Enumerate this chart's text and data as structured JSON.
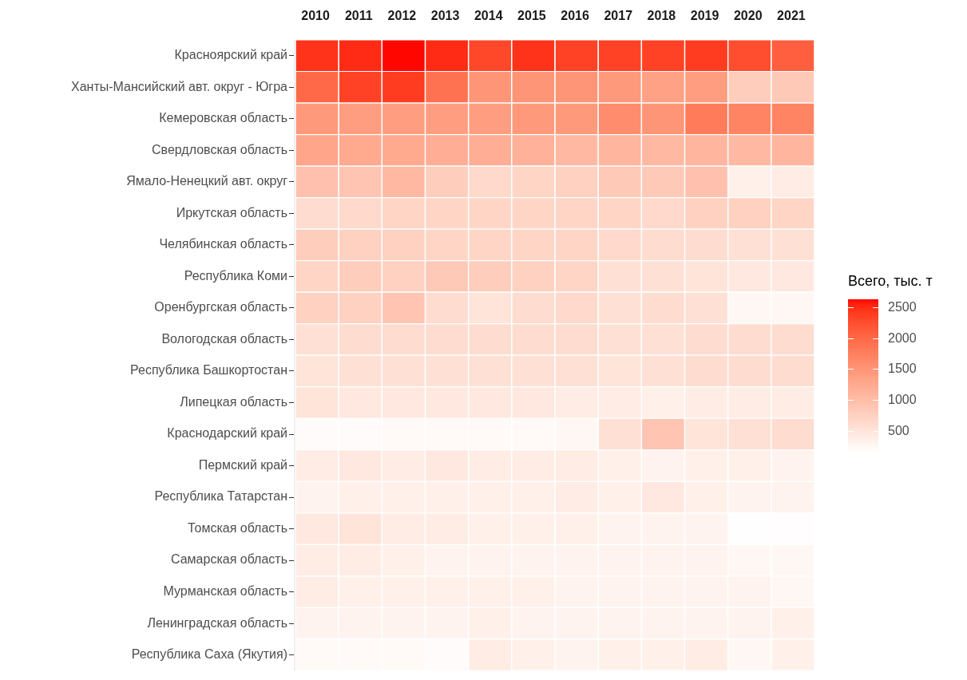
{
  "chart_data": {
    "type": "heatmap",
    "clabel": "Всего, тыс. т",
    "categories": [
      "2010",
      "2011",
      "2012",
      "2013",
      "2014",
      "2015",
      "2016",
      "2017",
      "2018",
      "2019",
      "2020",
      "2021"
    ],
    "y_categories": [
      "Красноярский край",
      "Ханты-Мансийский авт. округ - Югра",
      "Кемеровская область",
      "Свердловская область",
      "Ямало-Ненецкий авт. округ",
      "Иркутская область",
      "Челябинская область",
      "Республика Коми",
      "Оренбургская область",
      "Вологодская область",
      "Республика Башкортостан",
      "Липецкая область",
      "Краснодарский край",
      "Пермский край",
      "Республика Татарстан",
      "Томская область",
      "Самарская область",
      "Мурманская область",
      "Ленинградская область",
      "Республика Саха (Якутия)"
    ],
    "cells": [
      [
        2450,
        2500,
        2620,
        2500,
        2300,
        2450,
        2350,
        2350,
        2350,
        2400,
        2250,
        2100
      ],
      [
        2000,
        2350,
        2400,
        1900,
        1500,
        1500,
        1500,
        1450,
        1350,
        1400,
        800,
        850
      ],
      [
        1450,
        1400,
        1400,
        1400,
        1400,
        1450,
        1450,
        1600,
        1500,
        1800,
        1700,
        1700
      ],
      [
        1300,
        1250,
        1250,
        1200,
        1200,
        1150,
        1050,
        1100,
        1050,
        1100,
        1050,
        1100
      ],
      [
        950,
        900,
        1050,
        800,
        650,
        700,
        750,
        850,
        850,
        950,
        350,
        400
      ],
      [
        600,
        650,
        700,
        700,
        700,
        700,
        700,
        700,
        650,
        750,
        750,
        700
      ],
      [
        800,
        750,
        750,
        700,
        700,
        700,
        700,
        650,
        600,
        600,
        550,
        550
      ],
      [
        700,
        800,
        750,
        850,
        800,
        750,
        700,
        550,
        550,
        500,
        450,
        450
      ],
      [
        750,
        750,
        900,
        600,
        500,
        600,
        650,
        550,
        600,
        550,
        250,
        250
      ],
      [
        550,
        600,
        600,
        600,
        600,
        600,
        600,
        550,
        550,
        600,
        600,
        600
      ],
      [
        500,
        550,
        550,
        550,
        550,
        550,
        550,
        500,
        550,
        600,
        600,
        600
      ],
      [
        500,
        450,
        450,
        450,
        450,
        450,
        400,
        400,
        350,
        400,
        400,
        400
      ],
      [
        200,
        200,
        230,
        230,
        230,
        230,
        250,
        550,
        900,
        500,
        550,
        600
      ],
      [
        400,
        450,
        400,
        450,
        400,
        400,
        400,
        350,
        300,
        350,
        350,
        300
      ],
      [
        300,
        350,
        350,
        350,
        350,
        350,
        400,
        350,
        450,
        350,
        300,
        300
      ],
      [
        450,
        500,
        400,
        400,
        350,
        350,
        350,
        300,
        300,
        300,
        160,
        170
      ],
      [
        400,
        400,
        350,
        300,
        300,
        300,
        300,
        300,
        300,
        300,
        250,
        250
      ],
      [
        400,
        350,
        350,
        350,
        350,
        350,
        300,
        300,
        300,
        300,
        300,
        250
      ],
      [
        300,
        300,
        300,
        300,
        350,
        300,
        300,
        300,
        300,
        300,
        300,
        350
      ],
      [
        230,
        230,
        230,
        200,
        400,
        350,
        300,
        350,
        350,
        400,
        250,
        350
      ]
    ],
    "clim": [
      150,
      2630
    ],
    "cticks": [
      500,
      1000,
      1500,
      2000,
      2500
    ]
  }
}
